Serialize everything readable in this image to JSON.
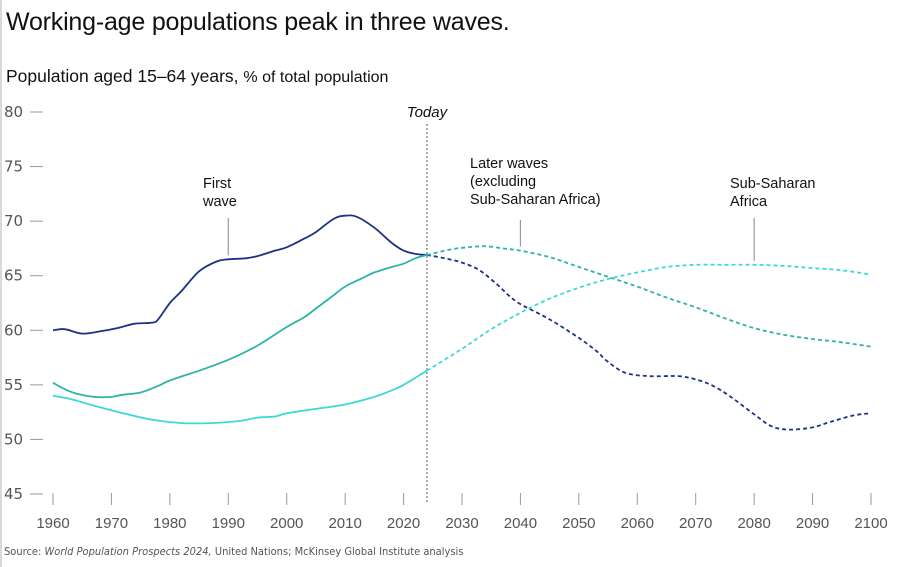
{
  "header": {
    "title": "Working-age populations peak in three waves.",
    "subtitle_main": "Population aged 15–64 years,",
    "subtitle_unit": "% of total population"
  },
  "source": {
    "prefix": "Source: ",
    "italic": "World Population Prospects 2024,",
    "rest": " United Nations; McKinsey Global Institute analysis"
  },
  "chart_data": {
    "type": "line",
    "title": "Working-age populations peak in three waves.",
    "subtitle": "Population aged 15–64 years, % of total population",
    "xlabel": "",
    "ylabel": "% of total population",
    "xlim": [
      1960,
      2100
    ],
    "ylim": [
      45,
      80
    ],
    "x_ticks": [
      1960,
      1970,
      1980,
      1990,
      2000,
      2010,
      2020,
      2030,
      2040,
      2050,
      2060,
      2070,
      2080,
      2090,
      2100
    ],
    "y_ticks": [
      45,
      50,
      55,
      60,
      65,
      70,
      75,
      80
    ],
    "grid": false,
    "legend": "none (direct annotations)",
    "today_marker": {
      "year": 2024,
      "label": "Today",
      "note": "solid lines = historical, dashed = projection"
    },
    "series": [
      {
        "name": "First wave",
        "label_lines": [
          "First",
          "wave"
        ],
        "label_anchor_year": 1990,
        "color": "#1f3284",
        "points": [
          [
            1960,
            60.0
          ],
          [
            1962,
            60.1
          ],
          [
            1965,
            59.7
          ],
          [
            1968,
            59.9
          ],
          [
            1971,
            60.2
          ],
          [
            1974,
            60.6
          ],
          [
            1977,
            60.7
          ],
          [
            1978,
            61.0
          ],
          [
            1980,
            62.5
          ],
          [
            1982,
            63.6
          ],
          [
            1985,
            65.4
          ],
          [
            1988,
            66.3
          ],
          [
            1990,
            66.5
          ],
          [
            1993,
            66.6
          ],
          [
            1995,
            66.8
          ],
          [
            1998,
            67.3
          ],
          [
            2000,
            67.6
          ],
          [
            2003,
            68.4
          ],
          [
            2005,
            69.0
          ],
          [
            2008,
            70.2
          ],
          [
            2010,
            70.5
          ],
          [
            2012,
            70.4
          ],
          [
            2015,
            69.4
          ],
          [
            2018,
            68.0
          ],
          [
            2020,
            67.3
          ],
          [
            2022,
            67.0
          ],
          [
            2024,
            66.9
          ],
          [
            2027,
            66.6
          ],
          [
            2030,
            66.2
          ],
          [
            2033,
            65.5
          ],
          [
            2036,
            64.2
          ],
          [
            2038,
            63.2
          ],
          [
            2040,
            62.4
          ],
          [
            2045,
            61.0
          ],
          [
            2050,
            59.3
          ],
          [
            2053,
            58.1
          ],
          [
            2055,
            57.1
          ],
          [
            2058,
            56.1
          ],
          [
            2062,
            55.8
          ],
          [
            2067,
            55.8
          ],
          [
            2070,
            55.5
          ],
          [
            2073,
            54.9
          ],
          [
            2076,
            53.9
          ],
          [
            2080,
            52.3
          ],
          [
            2083,
            51.2
          ],
          [
            2086,
            50.9
          ],
          [
            2090,
            51.1
          ],
          [
            2093,
            51.6
          ],
          [
            2097,
            52.2
          ],
          [
            2100,
            52.4
          ]
        ]
      },
      {
        "name": "Later waves (excluding Sub-Saharan Africa)",
        "label_lines": [
          "Later waves",
          "(excluding",
          "Sub-Saharan Africa)"
        ],
        "label_anchor_year": 2040,
        "color": "#2fb3a9",
        "points": [
          [
            1960,
            55.2
          ],
          [
            1962,
            54.6
          ],
          [
            1964,
            54.2
          ],
          [
            1967,
            53.9
          ],
          [
            1970,
            53.9
          ],
          [
            1972,
            54.1
          ],
          [
            1975,
            54.3
          ],
          [
            1978,
            54.9
          ],
          [
            1980,
            55.4
          ],
          [
            1985,
            56.3
          ],
          [
            1990,
            57.3
          ],
          [
            1995,
            58.6
          ],
          [
            2000,
            60.3
          ],
          [
            2003,
            61.2
          ],
          [
            2005,
            62.0
          ],
          [
            2008,
            63.2
          ],
          [
            2010,
            64.0
          ],
          [
            2013,
            64.8
          ],
          [
            2015,
            65.3
          ],
          [
            2018,
            65.8
          ],
          [
            2020,
            66.1
          ],
          [
            2022,
            66.6
          ],
          [
            2024,
            66.9
          ],
          [
            2028,
            67.4
          ],
          [
            2031,
            67.6
          ],
          [
            2034,
            67.7
          ],
          [
            2037,
            67.5
          ],
          [
            2040,
            67.3
          ],
          [
            2045,
            66.7
          ],
          [
            2050,
            65.8
          ],
          [
            2055,
            64.9
          ],
          [
            2060,
            64.0
          ],
          [
            2065,
            63.0
          ],
          [
            2070,
            62.1
          ],
          [
            2075,
            61.1
          ],
          [
            2080,
            60.2
          ],
          [
            2085,
            59.6
          ],
          [
            2090,
            59.2
          ],
          [
            2095,
            58.9
          ],
          [
            2100,
            58.5
          ]
        ]
      },
      {
        "name": "Sub-Saharan Africa",
        "label_lines": [
          "Sub-Saharan",
          "Africa"
        ],
        "label_anchor_year": 2080,
        "color": "#3fd9d3",
        "points": [
          [
            1960,
            54.0
          ],
          [
            1963,
            53.7
          ],
          [
            1967,
            53.1
          ],
          [
            1972,
            52.4
          ],
          [
            1977,
            51.8
          ],
          [
            1982,
            51.5
          ],
          [
            1987,
            51.5
          ],
          [
            1992,
            51.7
          ],
          [
            1995,
            52.0
          ],
          [
            1998,
            52.1
          ],
          [
            2000,
            52.4
          ],
          [
            2005,
            52.8
          ],
          [
            2010,
            53.2
          ],
          [
            2015,
            53.9
          ],
          [
            2018,
            54.5
          ],
          [
            2020,
            55.0
          ],
          [
            2024,
            56.3
          ],
          [
            2030,
            58.3
          ],
          [
            2035,
            60.1
          ],
          [
            2040,
            61.6
          ],
          [
            2045,
            62.9
          ],
          [
            2050,
            63.9
          ],
          [
            2055,
            64.7
          ],
          [
            2060,
            65.3
          ],
          [
            2065,
            65.8
          ],
          [
            2070,
            66.0
          ],
          [
            2075,
            66.0
          ],
          [
            2080,
            66.0
          ],
          [
            2085,
            65.9
          ],
          [
            2090,
            65.7
          ],
          [
            2095,
            65.5
          ],
          [
            2100,
            65.1
          ]
        ]
      }
    ]
  }
}
